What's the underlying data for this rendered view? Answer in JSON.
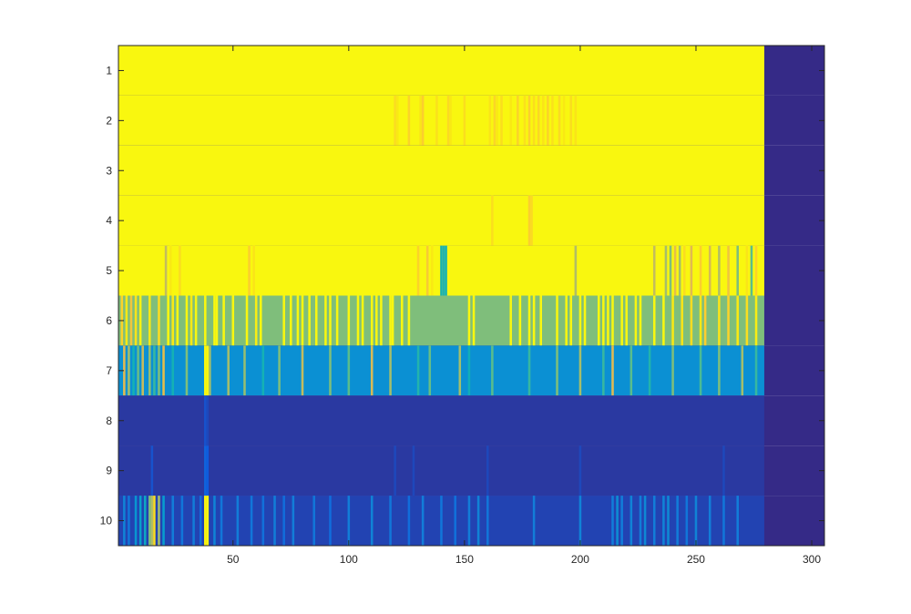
{
  "chart_data": {
    "type": "heatmap",
    "title": "",
    "xlabel": "",
    "ylabel": "",
    "xlim": [
      0.5,
      305.5
    ],
    "ylim": [
      0.5,
      10.5
    ],
    "y_reversed": true,
    "colormap": "parula",
    "clim": [
      0,
      1
    ],
    "grid": false,
    "x_ticks": [
      50,
      100,
      150,
      200,
      250,
      300
    ],
    "x_tick_labels": [
      "50",
      "100",
      "150",
      "200",
      "250",
      "300"
    ],
    "y_ticks": [
      1,
      2,
      3,
      4,
      5,
      6,
      7,
      8,
      9,
      10
    ],
    "y_tick_labels": [
      "1",
      "2",
      "3",
      "4",
      "5",
      "6",
      "7",
      "8",
      "9",
      "10"
    ],
    "data_columns": 279,
    "total_columns": 305,
    "rows": [
      {
        "row": 1,
        "base": 0.98,
        "accents": []
      },
      {
        "row": 2,
        "base": 0.98,
        "accents": [
          [
            120,
            0.85
          ],
          [
            121,
            0.9
          ],
          [
            126,
            0.82
          ],
          [
            131,
            0.88
          ],
          [
            132,
            0.8
          ],
          [
            138,
            0.87
          ],
          [
            143,
            0.84
          ],
          [
            144,
            0.9
          ],
          [
            150,
            0.86
          ],
          [
            161,
            0.88
          ],
          [
            163,
            0.83
          ],
          [
            164,
            0.9
          ],
          [
            166,
            0.86
          ],
          [
            170,
            0.9
          ],
          [
            173,
            0.82
          ],
          [
            176,
            0.87
          ],
          [
            178,
            0.8
          ],
          [
            180,
            0.86
          ],
          [
            182,
            0.83
          ],
          [
            184,
            0.88
          ],
          [
            186,
            0.82
          ],
          [
            188,
            0.87
          ],
          [
            191,
            0.84
          ],
          [
            193,
            0.9
          ],
          [
            196,
            0.86
          ],
          [
            198,
            0.88
          ]
        ]
      },
      {
        "row": 3,
        "base": 0.98,
        "accents": []
      },
      {
        "row": 4,
        "base": 0.98,
        "accents": [
          [
            162,
            0.86
          ],
          [
            178,
            0.8
          ],
          [
            179,
            0.84
          ]
        ]
      },
      {
        "row": 5,
        "base": 0.98,
        "accents": [
          [
            21,
            0.65
          ],
          [
            23,
            0.9
          ],
          [
            27,
            0.85
          ],
          [
            57,
            0.8
          ],
          [
            59,
            0.88
          ],
          [
            130,
            0.82
          ],
          [
            134,
            0.78
          ],
          [
            136,
            0.9
          ],
          [
            140,
            0.4
          ],
          [
            141,
            0.42
          ],
          [
            142,
            0.4
          ],
          [
            198,
            0.62
          ],
          [
            232,
            0.65
          ],
          [
            237,
            0.6
          ],
          [
            239,
            0.55
          ],
          [
            241,
            0.72
          ],
          [
            243,
            0.6
          ],
          [
            245,
            0.85
          ],
          [
            248,
            0.7
          ],
          [
            252,
            0.8
          ],
          [
            256,
            0.68
          ],
          [
            260,
            0.62
          ],
          [
            264,
            0.75
          ],
          [
            268,
            0.55
          ],
          [
            272,
            0.88
          ],
          [
            274,
            0.5
          ],
          [
            276,
            0.82
          ]
        ]
      },
      {
        "row": 6,
        "base": 0.55,
        "accents": [
          [
            2,
            0.82
          ],
          [
            4,
            0.9
          ],
          [
            6,
            0.76
          ],
          [
            8,
            0.88
          ],
          [
            10,
            0.95
          ],
          [
            14,
            0.9
          ],
          [
            18,
            0.85
          ],
          [
            22,
            0.98
          ],
          [
            24,
            0.9
          ],
          [
            26,
            0.98
          ],
          [
            30,
            0.98
          ],
          [
            32,
            0.9
          ],
          [
            34,
            0.98
          ],
          [
            38,
            0.98
          ],
          [
            42,
            0.98
          ],
          [
            43,
            0.98
          ],
          [
            46,
            0.98
          ],
          [
            50,
            0.98
          ],
          [
            56,
            0.98
          ],
          [
            60,
            0.92
          ],
          [
            62,
            0.98
          ],
          [
            72,
            0.98
          ],
          [
            75,
            0.98
          ],
          [
            78,
            0.98
          ],
          [
            80,
            0.98
          ],
          [
            83,
            0.98
          ],
          [
            86,
            0.98
          ],
          [
            90,
            0.98
          ],
          [
            92,
            0.98
          ],
          [
            95,
            0.98
          ],
          [
            100,
            0.98
          ],
          [
            104,
            0.98
          ],
          [
            106,
            0.98
          ],
          [
            110,
            0.98
          ],
          [
            112,
            0.98
          ],
          [
            114,
            0.98
          ],
          [
            118,
            0.98
          ],
          [
            119,
            0.98
          ],
          [
            123,
            0.98
          ],
          [
            126,
            0.98
          ],
          [
            152,
            0.98
          ],
          [
            154,
            0.98
          ],
          [
            170,
            0.98
          ],
          [
            174,
            0.98
          ],
          [
            178,
            0.98
          ],
          [
            180,
            0.98
          ],
          [
            183,
            0.98
          ],
          [
            190,
            0.98
          ],
          [
            194,
            0.98
          ],
          [
            196,
            0.98
          ],
          [
            200,
            0.98
          ],
          [
            202,
            0.98
          ],
          [
            208,
            0.98
          ],
          [
            210,
            0.98
          ],
          [
            212,
            0.98
          ],
          [
            214,
            0.98
          ],
          [
            218,
            0.98
          ],
          [
            220,
            0.98
          ],
          [
            224,
            0.98
          ],
          [
            226,
            0.98
          ],
          [
            232,
            0.98
          ],
          [
            236,
            0.98
          ],
          [
            240,
            0.9
          ],
          [
            244,
            0.88
          ],
          [
            248,
            0.85
          ],
          [
            252,
            0.9
          ],
          [
            254,
            0.8
          ],
          [
            260,
            0.88
          ],
          [
            264,
            0.82
          ],
          [
            268,
            0.9
          ],
          [
            272,
            0.86
          ],
          [
            276,
            0.92
          ]
        ]
      },
      {
        "row": 7,
        "base": 0.26,
        "accents": [
          [
            3,
            0.7
          ],
          [
            5,
            0.6
          ],
          [
            7,
            0.4
          ],
          [
            9,
            0.52
          ],
          [
            11,
            0.66
          ],
          [
            14,
            0.58
          ],
          [
            16,
            0.45
          ],
          [
            18,
            0.55
          ],
          [
            20,
            0.72
          ],
          [
            24,
            0.4
          ],
          [
            30,
            0.55
          ],
          [
            38,
            0.98
          ],
          [
            39,
            0.98
          ],
          [
            40,
            0.6
          ],
          [
            48,
            0.6
          ],
          [
            55,
            0.58
          ],
          [
            63,
            0.4
          ],
          [
            70,
            0.55
          ],
          [
            80,
            0.65
          ],
          [
            92,
            0.55
          ],
          [
            100,
            0.5
          ],
          [
            110,
            0.68
          ],
          [
            118,
            0.6
          ],
          [
            130,
            0.42
          ],
          [
            135,
            0.52
          ],
          [
            148,
            0.6
          ],
          [
            152,
            0.38
          ],
          [
            162,
            0.5
          ],
          [
            178,
            0.45
          ],
          [
            190,
            0.55
          ],
          [
            200,
            0.6
          ],
          [
            210,
            0.45
          ],
          [
            214,
            0.7
          ],
          [
            222,
            0.5
          ],
          [
            230,
            0.42
          ],
          [
            240,
            0.55
          ],
          [
            252,
            0.48
          ],
          [
            260,
            0.55
          ],
          [
            270,
            0.6
          ],
          [
            276,
            0.45
          ]
        ]
      },
      {
        "row": 8,
        "base": 0.03,
        "accents": [
          [
            38,
            0.08
          ],
          [
            39,
            0.06
          ]
        ]
      },
      {
        "row": 9,
        "base": 0.03,
        "accents": [
          [
            15,
            0.08
          ],
          [
            38,
            0.12
          ],
          [
            39,
            0.1
          ],
          [
            120,
            0.06
          ],
          [
            128,
            0.06
          ],
          [
            160,
            0.06
          ],
          [
            200,
            0.06
          ],
          [
            262,
            0.06
          ]
        ]
      },
      {
        "row": 10,
        "base": 0.05,
        "accents": [
          [
            3,
            0.22
          ],
          [
            5,
            0.18
          ],
          [
            8,
            0.28
          ],
          [
            10,
            0.32
          ],
          [
            12,
            0.35
          ],
          [
            14,
            0.55
          ],
          [
            15,
            0.62
          ],
          [
            16,
            0.85
          ],
          [
            18,
            0.6
          ],
          [
            20,
            0.3
          ],
          [
            24,
            0.2
          ],
          [
            28,
            0.18
          ],
          [
            33,
            0.2
          ],
          [
            36,
            0.15
          ],
          [
            38,
            0.95
          ],
          [
            39,
            0.98
          ],
          [
            42,
            0.22
          ],
          [
            45,
            0.18
          ],
          [
            52,
            0.2
          ],
          [
            58,
            0.18
          ],
          [
            63,
            0.16
          ],
          [
            68,
            0.2
          ],
          [
            72,
            0.15
          ],
          [
            76,
            0.2
          ],
          [
            85,
            0.18
          ],
          [
            92,
            0.15
          ],
          [
            100,
            0.2
          ],
          [
            110,
            0.22
          ],
          [
            118,
            0.18
          ],
          [
            126,
            0.15
          ],
          [
            132,
            0.2
          ],
          [
            140,
            0.18
          ],
          [
            146,
            0.16
          ],
          [
            152,
            0.2
          ],
          [
            156,
            0.22
          ],
          [
            160,
            0.18
          ],
          [
            180,
            0.2
          ],
          [
            200,
            0.22
          ],
          [
            214,
            0.2
          ],
          [
            216,
            0.25
          ],
          [
            218,
            0.2
          ],
          [
            222,
            0.22
          ],
          [
            226,
            0.2
          ],
          [
            228,
            0.24
          ],
          [
            232,
            0.2
          ],
          [
            236,
            0.22
          ],
          [
            238,
            0.24
          ],
          [
            242,
            0.2
          ],
          [
            246,
            0.18
          ],
          [
            250,
            0.22
          ],
          [
            256,
            0.2
          ],
          [
            262,
            0.18
          ],
          [
            268,
            0.2
          ]
        ]
      }
    ]
  }
}
